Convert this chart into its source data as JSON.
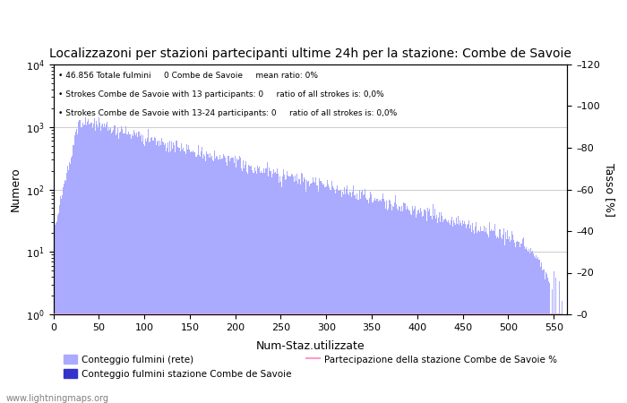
{
  "title": "Localizzazoni per stazioni partecipanti ultime 24h per la stazione: Combe de Savoie",
  "xlabel": "Num-Staz.utilizzate",
  "ylabel_left": "Numero",
  "ylabel_right": "Tasso [%]",
  "info_lines": [
    "46.856 Totale fulmini     0 Combe de Savoie     mean ratio: 0%",
    "Strokes Combe de Savoie with 13 participants: 0     ratio of all strokes is: 0,0%",
    "Strokes Combe de Savoie with 13-24 participants: 0     ratio of all strokes is: 0,0%"
  ],
  "legend_entries": [
    {
      "label": "Conteggio fulmini (rete)",
      "color": "#aaaaff"
    },
    {
      "label": "Conteggio fulmini stazione Combe de Savoie",
      "color": "#3333cc"
    },
    {
      "label": "Partecipazione della stazione Combe de Savoie %",
      "color": "#ff99cc"
    }
  ],
  "watermark": "www.lightningmaps.org",
  "bar_color_main": "#aaaaff",
  "bar_color_station": "#3333cc",
  "line_color": "#ff99cc",
  "background_color": "#ffffff",
  "grid_color": "#cccccc",
  "xlim": [
    0,
    560
  ],
  "ylim_log_min": 1,
  "ylim_log_max": 10000,
  "ylim_right": [
    0,
    120
  ],
  "xticks": [
    0,
    50,
    100,
    150,
    200,
    250,
    300,
    350,
    400,
    450,
    500,
    550
  ],
  "yticks_right": [
    0,
    20,
    40,
    60,
    80,
    100,
    120
  ],
  "yticks_log": [
    1,
    10,
    100,
    1000,
    10000
  ]
}
